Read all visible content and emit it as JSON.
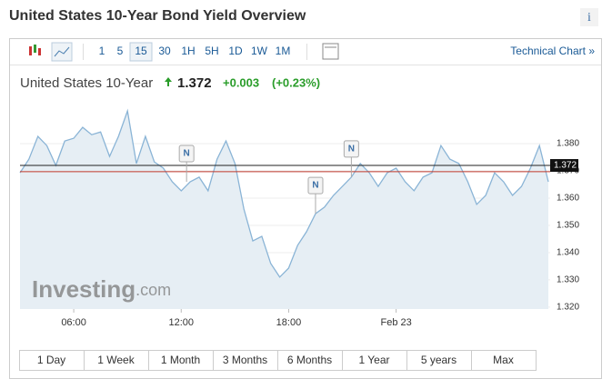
{
  "header": {
    "title": "United States 10-Year Bond Yield Overview",
    "info": "i"
  },
  "toolbar": {
    "intervals": [
      "1",
      "5",
      "15",
      "30",
      "1H",
      "5H",
      "1D",
      "1W",
      "1M"
    ],
    "selected": "15",
    "link": "Technical Chart »"
  },
  "quote": {
    "name": "United States 10-Year",
    "price": "1.372",
    "change": "+0.003",
    "change_pct": "(+0.23%)"
  },
  "chart_data": {
    "type": "area",
    "color": "#8ab4d6",
    "fill": "#e6eef4",
    "x": [
      3,
      3.5,
      4,
      4.5,
      5,
      5.5,
      6,
      6.5,
      7,
      7.5,
      8,
      8.5,
      9,
      9.5,
      10,
      10.5,
      11,
      11.5,
      12,
      12.5,
      13,
      13.5,
      14,
      14.5,
      15,
      15.5,
      16,
      16.5,
      17,
      17.5,
      18,
      18.5,
      19,
      19.5,
      20,
      20.5,
      21,
      21.5,
      22,
      22.5,
      23,
      23.5,
      24,
      24.5,
      25,
      25.5,
      26,
      26.5,
      27,
      27.5,
      28,
      28.5,
      29,
      29.5,
      30,
      30.5,
      31,
      31.5,
      32,
      32.5
    ],
    "values": [
      1.3693,
      1.3743,
      1.3827,
      1.3793,
      1.372,
      1.381,
      1.382,
      1.386,
      1.3833,
      1.3843,
      1.3753,
      1.3827,
      1.392,
      1.3727,
      1.3827,
      1.3733,
      1.371,
      1.366,
      1.3627,
      1.366,
      1.3677,
      1.3627,
      1.3743,
      1.381,
      1.3727,
      1.356,
      1.3443,
      1.346,
      1.336,
      1.331,
      1.3343,
      1.3427,
      1.3477,
      1.3543,
      1.3567,
      1.361,
      1.3643,
      1.3677,
      1.3727,
      1.3693,
      1.3643,
      1.3693,
      1.371,
      1.366,
      1.3627,
      1.3677,
      1.3693,
      1.3793,
      1.3743,
      1.3727,
      1.366,
      1.3577,
      1.361,
      1.3693,
      1.366,
      1.361,
      1.3643,
      1.371,
      1.3793,
      1.366
    ],
    "xlim": [
      3,
      32.6
    ],
    "xticks": [
      {
        "value": 6,
        "label": "06:00"
      },
      {
        "value": 12,
        "label": "12:00"
      },
      {
        "value": 18,
        "label": "18:00"
      },
      {
        "value": 24,
        "label": "Feb 23"
      }
    ],
    "ylim": [
      1.3193,
      1.3967
    ],
    "yticks": [
      {
        "value": 1.32,
        "label": "1.320"
      },
      {
        "value": 1.33,
        "label": "1.330"
      },
      {
        "value": 1.34,
        "label": "1.340"
      },
      {
        "value": 1.35,
        "label": "1.350"
      },
      {
        "value": 1.36,
        "label": "1.360"
      },
      {
        "value": 1.37,
        "label": "1.370"
      },
      {
        "value": 1.38,
        "label": "1.380"
      }
    ],
    "last_value": 1.372,
    "prev_close": 1.3697,
    "news_flags": [
      {
        "x": 12.3,
        "label": "N"
      },
      {
        "x": 19.5,
        "label": "N"
      },
      {
        "x": 21.5,
        "label": "N"
      }
    ],
    "watermark": [
      "Investing",
      ".com"
    ]
  },
  "ranges": [
    "1 Day",
    "1 Week",
    "1 Month",
    "3 Months",
    "6 Months",
    "1 Year",
    "5 years",
    "Max"
  ]
}
